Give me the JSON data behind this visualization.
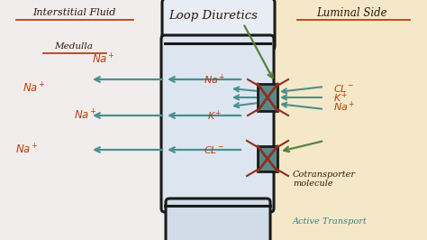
{
  "bg_left_color": "#f2eded",
  "bg_right_color": "#f5e8c8",
  "cell_top_color": "#e8edf5",
  "cell_main_color": "#dde6f0",
  "cell_bot_color": "#d0dce8",
  "cell_edge_color": "#1a1a1a",
  "arrow_color_teal": "#4a9090",
  "arrow_color_green": "#5a8040",
  "text_color_dark": "#2a1808",
  "text_color_teal": "#3a8080",
  "text_color_orange": "#b84010",
  "xbox_fill": "#5a8888",
  "xbox_edge": "#1a1a1a",
  "xbox_x": "#8b3020",
  "title": "Loop Diuretics",
  "label_left": "Interstitial Fluid",
  "label_medulla": "Medulla",
  "label_luminal": "Luminal Side",
  "label_cotransporter1": "Cotransporter",
  "label_cotransporter2": "molecule",
  "label_active": "Active Transport",
  "figw": 4.74,
  "figh": 2.66,
  "dpi": 100
}
